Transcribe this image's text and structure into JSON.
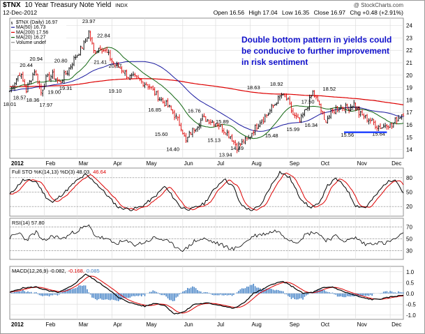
{
  "header": {
    "symbol": "$TNX",
    "name": "10 Year Treasury Note Yield",
    "exchange": "INDX",
    "date": "12-Dec-2012",
    "watermark": "@ StockCharts.com",
    "ohlc": {
      "open_label": "Open",
      "open": "16.56",
      "high_label": "High",
      "high": "17.04",
      "low_label": "Low",
      "low": "16.35",
      "close_label": "Close",
      "close": "16.97",
      "chg_label": "Chg",
      "chg": "+0.48 (+2.91%)"
    }
  },
  "colors": {
    "price_up": "#000000",
    "price_down": "#dd0000",
    "ma50": "#1a1aa0",
    "ma200": "#dd0000",
    "ma20": "#116611",
    "note": "#1010cc",
    "grid": "#dddddd",
    "osc_fill": "#4a86c8",
    "support": "#1a3cff"
  },
  "chart_data": [
    {
      "type": "line",
      "title": "",
      "legend": [
        {
          "label": "$TNX (Daily) 16.97",
          "color": "#000000"
        },
        {
          "label": "MA(50) 16.73",
          "color": "#1a1aa0"
        },
        {
          "label": "MA(200) 17.56",
          "color": "#dd0000"
        },
        {
          "label": "MA(20) 16.27",
          "color": "#116611"
        },
        {
          "label": "Volume undef",
          "color": "#888888"
        }
      ],
      "legend_position": "top-left",
      "y_ticks": [
        14,
        15,
        16,
        17,
        18,
        19,
        20,
        21,
        22,
        23,
        24
      ],
      "ylim": [
        13.3,
        24.6
      ],
      "y_axis_side": "right",
      "grid": true,
      "x_months": [
        {
          "label": "2012",
          "day": 0,
          "bold": true
        },
        {
          "label": "Feb",
          "day": 21
        },
        {
          "label": "Mar",
          "day": 41
        },
        {
          "label": "Apr",
          "day": 62
        },
        {
          "label": "May",
          "day": 82
        },
        {
          "label": "Jun",
          "day": 105
        },
        {
          "label": "Jul",
          "day": 125
        },
        {
          "label": "Aug",
          "day": 146
        },
        {
          "label": "Sep",
          "day": 169
        },
        {
          "label": "Oct",
          "day": 188
        },
        {
          "label": "Nov",
          "day": 210
        },
        {
          "label": "Dec",
          "day": 231
        }
      ],
      "x_range_days": [
        0,
        239
      ],
      "price_keypoints": [
        [
          0,
          18.7
        ],
        [
          6,
          20.2
        ],
        [
          10,
          18.8
        ],
        [
          15,
          20.4
        ],
        [
          19,
          18.6
        ],
        [
          22,
          19.7
        ],
        [
          26,
          20.0
        ],
        [
          30,
          19.4
        ],
        [
          35,
          20.3
        ],
        [
          40,
          21.5
        ],
        [
          45,
          22.5
        ],
        [
          48,
          23.5
        ],
        [
          51,
          21.9
        ],
        [
          55,
          22.3
        ],
        [
          60,
          21.6
        ],
        [
          64,
          20.8
        ],
        [
          68,
          20.5
        ],
        [
          72,
          19.9
        ],
        [
          76,
          19.8
        ],
        [
          80,
          19.5
        ],
        [
          84,
          19.2
        ],
        [
          88,
          18.6
        ],
        [
          92,
          18.0
        ],
        [
          96,
          17.5
        ],
        [
          100,
          16.8
        ],
        [
          104,
          15.9
        ],
        [
          107,
          14.6
        ],
        [
          109,
          15.2
        ],
        [
          113,
          15.9
        ],
        [
          117,
          16.5
        ],
        [
          121,
          16.4
        ],
        [
          126,
          16.1
        ],
        [
          130,
          15.6
        ],
        [
          134,
          15.1
        ],
        [
          138,
          14.2
        ],
        [
          141,
          14.5
        ],
        [
          145,
          14.9
        ],
        [
          148,
          15.6
        ],
        [
          152,
          16.3
        ],
        [
          157,
          16.9
        ],
        [
          162,
          17.9
        ],
        [
          165,
          18.4
        ],
        [
          169,
          17.9
        ],
        [
          172,
          16.8
        ],
        [
          176,
          16.2
        ],
        [
          180,
          17.3
        ],
        [
          184,
          18.6
        ],
        [
          188,
          17.6
        ],
        [
          191,
          16.3
        ],
        [
          194,
          16.7
        ],
        [
          197,
          17.2
        ],
        [
          201,
          17.5
        ],
        [
          205,
          17.3
        ],
        [
          209,
          17.7
        ],
        [
          212,
          16.9
        ],
        [
          216,
          16.6
        ],
        [
          220,
          16.3
        ],
        [
          223,
          15.9
        ],
        [
          226,
          15.8
        ],
        [
          229,
          16.1
        ],
        [
          232,
          15.9
        ],
        [
          235,
          16.5
        ],
        [
          239,
          16.97
        ]
      ],
      "annotations": [
        {
          "text": "18.01",
          "day": 0,
          "value": 18.01,
          "pos": "below"
        },
        {
          "text": "20.44",
          "day": 10,
          "value": 20.44,
          "pos": "above"
        },
        {
          "text": "18.57",
          "day": 6,
          "value": 18.57,
          "pos": "below"
        },
        {
          "text": "18.36",
          "day": 14,
          "value": 18.36,
          "pos": "below"
        },
        {
          "text": "20.94",
          "day": 16,
          "value": 20.94,
          "pos": "above"
        },
        {
          "text": "17.97",
          "day": 22,
          "value": 17.97,
          "pos": "below"
        },
        {
          "text": "19.00",
          "day": 27,
          "value": 19.0,
          "pos": "below"
        },
        {
          "text": "20.80",
          "day": 31,
          "value": 20.8,
          "pos": "above"
        },
        {
          "text": "19.31",
          "day": 34,
          "value": 19.31,
          "pos": "below"
        },
        {
          "text": "23.97",
          "day": 48,
          "value": 23.97,
          "pos": "above"
        },
        {
          "text": "22.84",
          "day": 57,
          "value": 22.84,
          "pos": "above"
        },
        {
          "text": "21.41",
          "day": 55,
          "value": 21.41,
          "pos": "below"
        },
        {
          "text": "20.37",
          "day": 64,
          "value": 20.37,
          "pos": "above"
        },
        {
          "text": "19.10",
          "day": 64,
          "value": 19.1,
          "pos": "below"
        },
        {
          "text": "16.85",
          "day": 88,
          "value": 16.85,
          "pos": "above"
        },
        {
          "text": "15.60",
          "day": 92,
          "value": 15.6,
          "pos": "below"
        },
        {
          "text": "16.76",
          "day": 112,
          "value": 16.76,
          "pos": "above"
        },
        {
          "text": "14.40",
          "day": 99,
          "value": 14.4,
          "pos": "below"
        },
        {
          "text": "15.89",
          "day": 129,
          "value": 15.89,
          "pos": "above"
        },
        {
          "text": "15.13",
          "day": 124,
          "value": 15.13,
          "pos": "below"
        },
        {
          "text": "14.49",
          "day": 138,
          "value": 14.49,
          "pos": "below"
        },
        {
          "text": "13.94",
          "day": 131,
          "value": 13.94,
          "pos": "below"
        },
        {
          "text": "18.63",
          "day": 148,
          "value": 18.63,
          "pos": "above"
        },
        {
          "text": "18.92",
          "day": 162,
          "value": 18.92,
          "pos": "above"
        },
        {
          "text": "15.48",
          "day": 159,
          "value": 15.48,
          "pos": "below"
        },
        {
          "text": "15.99",
          "day": 172,
          "value": 15.99,
          "pos": "below"
        },
        {
          "text": "17.50",
          "day": 181,
          "value": 17.5,
          "pos": "above"
        },
        {
          "text": "16.34",
          "day": 183,
          "value": 16.34,
          "pos": "below"
        },
        {
          "text": "18.52",
          "day": 194,
          "value": 18.52,
          "pos": "above"
        },
        {
          "text": "16.95",
          "day": 209,
          "value": 16.95,
          "pos": "above"
        },
        {
          "text": "15.56",
          "day": 205,
          "value": 15.56,
          "pos": "below"
        },
        {
          "text": "15.64",
          "day": 224,
          "value": 15.64,
          "pos": "below"
        }
      ],
      "note": "Double bottom pattern in yields could be conducive to further improvement in risk sentiment",
      "note_lines": [
        "Double bottom pattern in yields could",
        "be conducive to further improvement",
        "in risk sentiment"
      ],
      "support_line": {
        "from_day": 203,
        "to_day": 229,
        "value": 15.4
      }
    },
    {
      "type": "line",
      "legend": [
        {
          "label": "Full STO %K(14,13) %D(3) 48.03,",
          "color": "#000000"
        },
        {
          "label": "46.64",
          "color": "#dd0000"
        }
      ],
      "y_ticks": [
        20,
        50,
        80
      ],
      "ylim": [
        0,
        100
      ],
      "reference_lines": [
        20,
        50,
        80
      ],
      "k_keypoints": [
        [
          0,
          45
        ],
        [
          8,
          75
        ],
        [
          16,
          72
        ],
        [
          22,
          40
        ],
        [
          26,
          28
        ],
        [
          34,
          52
        ],
        [
          40,
          72
        ],
        [
          46,
          86
        ],
        [
          52,
          70
        ],
        [
          60,
          40
        ],
        [
          66,
          18
        ],
        [
          74,
          14
        ],
        [
          80,
          20
        ],
        [
          88,
          40
        ],
        [
          94,
          62
        ],
        [
          98,
          45
        ],
        [
          104,
          18
        ],
        [
          110,
          14
        ],
        [
          118,
          26
        ],
        [
          124,
          55
        ],
        [
          130,
          78
        ],
        [
          136,
          60
        ],
        [
          140,
          25
        ],
        [
          146,
          12
        ],
        [
          152,
          20
        ],
        [
          158,
          60
        ],
        [
          164,
          92
        ],
        [
          170,
          80
        ],
        [
          176,
          40
        ],
        [
          182,
          18
        ],
        [
          188,
          25
        ],
        [
          192,
          60
        ],
        [
          198,
          78
        ],
        [
          204,
          60
        ],
        [
          210,
          22
        ],
        [
          216,
          18
        ],
        [
          222,
          42
        ],
        [
          228,
          68
        ],
        [
          234,
          78
        ],
        [
          239,
          48
        ]
      ]
    },
    {
      "type": "line",
      "legend": [
        {
          "label": "RSI(14) 57.80",
          "color": "#000000"
        }
      ],
      "y_ticks": [
        30,
        50,
        70
      ],
      "ylim": [
        15,
        85
      ],
      "reference_lines": [
        30,
        50,
        70
      ],
      "rsi_keypoints": [
        [
          0,
          52
        ],
        [
          6,
          60
        ],
        [
          10,
          48
        ],
        [
          16,
          62
        ],
        [
          20,
          45
        ],
        [
          26,
          55
        ],
        [
          32,
          50
        ],
        [
          38,
          60
        ],
        [
          44,
          68
        ],
        [
          48,
          72
        ],
        [
          52,
          55
        ],
        [
          58,
          50
        ],
        [
          64,
          42
        ],
        [
          70,
          46
        ],
        [
          76,
          40
        ],
        [
          82,
          44
        ],
        [
          88,
          52
        ],
        [
          94,
          48
        ],
        [
          100,
          38
        ],
        [
          106,
          30
        ],
        [
          112,
          46
        ],
        [
          118,
          50
        ],
        [
          124,
          44
        ],
        [
          130,
          38
        ],
        [
          136,
          32
        ],
        [
          142,
          42
        ],
        [
          148,
          55
        ],
        [
          154,
          58
        ],
        [
          162,
          64
        ],
        [
          168,
          52
        ],
        [
          174,
          44
        ],
        [
          180,
          58
        ],
        [
          186,
          62
        ],
        [
          192,
          48
        ],
        [
          198,
          54
        ],
        [
          204,
          46
        ],
        [
          210,
          52
        ],
        [
          216,
          40
        ],
        [
          222,
          44
        ],
        [
          228,
          42
        ],
        [
          234,
          50
        ],
        [
          239,
          57.8
        ]
      ]
    },
    {
      "type": "bar",
      "legend": [
        {
          "label": "MACD(12,26,9) -0.082,",
          "color": "#000000"
        },
        {
          "label": "-0.168,",
          "color": "#dd0000"
        },
        {
          "label": "0.085",
          "color": "#4a86c8"
        }
      ],
      "y_ticks": [
        -1.0,
        -0.5,
        0.0,
        0.5,
        1.0
      ],
      "ylim": [
        -1.2,
        1.25
      ],
      "macd_keypoints": [
        [
          0,
          0.05
        ],
        [
          8,
          0.25
        ],
        [
          16,
          0.3
        ],
        [
          24,
          0.1
        ],
        [
          30,
          0.05
        ],
        [
          38,
          0.35
        ],
        [
          46,
          0.9
        ],
        [
          52,
          0.6
        ],
        [
          60,
          0.2
        ],
        [
          66,
          -0.2
        ],
        [
          74,
          -0.45
        ],
        [
          82,
          -0.6
        ],
        [
          88,
          -0.45
        ],
        [
          94,
          -0.55
        ],
        [
          100,
          -0.95
        ],
        [
          106,
          -0.85
        ],
        [
          112,
          -0.5
        ],
        [
          120,
          -0.45
        ],
        [
          128,
          -0.55
        ],
        [
          136,
          -0.7
        ],
        [
          142,
          -0.45
        ],
        [
          148,
          0.0
        ],
        [
          154,
          0.2
        ],
        [
          160,
          0.45
        ],
        [
          166,
          0.55
        ],
        [
          172,
          0.3
        ],
        [
          178,
          0.0
        ],
        [
          184,
          0.05
        ],
        [
          190,
          0.25
        ],
        [
          196,
          0.3
        ],
        [
          202,
          0.1
        ],
        [
          208,
          -0.05
        ],
        [
          214,
          -0.2
        ],
        [
          220,
          -0.28
        ],
        [
          226,
          -0.25
        ],
        [
          232,
          -0.15
        ],
        [
          239,
          -0.082
        ]
      ],
      "signal_lag_days": 7
    }
  ]
}
